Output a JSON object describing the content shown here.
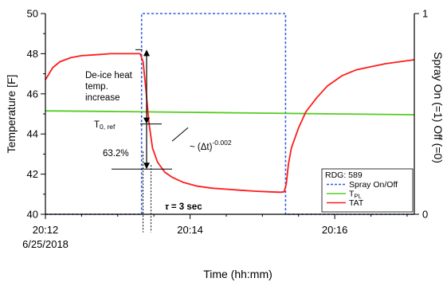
{
  "chart_data": {
    "type": "line",
    "xlabel": "Time (hh:mm)",
    "ylabel": "Temperature [F]",
    "y2label": "Spray On (=1) Off (=0)",
    "xlim": [
      12.0,
      17.1
    ],
    "ylim": [
      40,
      50
    ],
    "y2lim": [
      0,
      1
    ],
    "grid": false,
    "legend_position": "right",
    "x_ticks": [
      {
        "x": 12,
        "label": "20:12",
        "sublabel": "6/25/2018"
      },
      {
        "x": 14,
        "label": "20:14",
        "sublabel": ""
      },
      {
        "x": 16,
        "label": "20:16",
        "sublabel": ""
      }
    ],
    "y_ticks": [
      40,
      42,
      44,
      46,
      48,
      50
    ],
    "y2_ticks": [
      0,
      1
    ],
    "legend": {
      "title": "RDG: 589",
      "entries": [
        {
          "label": "Spray On/Off",
          "sub": "",
          "color": "#2e5ce6",
          "dash": true
        },
        {
          "label": "T",
          "sub": "PL",
          "color": "#55cc22",
          "dash": false
        },
        {
          "label": "TAT",
          "sub": "",
          "color": "#ff1a1a",
          "dash": false
        }
      ]
    },
    "series": [
      {
        "name": "Spray On/Off",
        "axis": "right",
        "color": "#2e5ce6",
        "x": [
          12.0,
          13.33,
          13.33,
          15.32,
          15.32,
          17.1
        ],
        "y": [
          0,
          0,
          1,
          1,
          0,
          0
        ]
      },
      {
        "name": "TPL",
        "axis": "left",
        "color": "#55cc22",
        "x": [
          12.0,
          13.0,
          14.0,
          15.0,
          16.0,
          17.1
        ],
        "y": [
          45.15,
          45.12,
          45.08,
          45.04,
          45.0,
          44.96
        ]
      },
      {
        "name": "TAT",
        "axis": "left",
        "color": "#ff1a1a",
        "x": [
          12.0,
          12.1,
          12.2,
          12.35,
          12.5,
          12.7,
          12.9,
          13.1,
          13.25,
          13.31,
          13.35,
          13.39,
          13.43,
          13.48,
          13.55,
          13.65,
          13.75,
          13.9,
          14.1,
          14.3,
          14.5,
          14.7,
          14.9,
          15.1,
          15.25,
          15.3,
          15.33,
          15.36,
          15.4,
          15.5,
          15.6,
          15.75,
          15.9,
          16.1,
          16.3,
          16.5,
          16.7,
          16.9,
          17.1
        ],
        "y": [
          46.7,
          47.3,
          47.6,
          47.8,
          47.9,
          47.95,
          48.0,
          48.0,
          48.0,
          48.0,
          47.6,
          46.2,
          44.6,
          43.3,
          42.6,
          42.1,
          41.85,
          41.6,
          41.4,
          41.3,
          41.25,
          41.2,
          41.15,
          41.12,
          41.1,
          41.12,
          41.5,
          42.5,
          43.3,
          44.3,
          45.1,
          45.8,
          46.4,
          46.9,
          47.2,
          47.35,
          47.5,
          47.6,
          47.7
        ]
      }
    ],
    "annotations": {
      "deice_label": [
        "De-ice heat",
        "temp.",
        "increase"
      ],
      "t0_main": "T",
      "t0_sub": "0, ref",
      "pct": "63.2%",
      "power_base": "~ (Δt)",
      "power_exp": "-0.002",
      "tau_symbol": "τ",
      "tau_value": " = 3  sec",
      "top_level": 48.2,
      "ref_level": 44.5,
      "low_level": 42.25,
      "tau_start": 13.35,
      "tau_end": 13.46
    }
  }
}
